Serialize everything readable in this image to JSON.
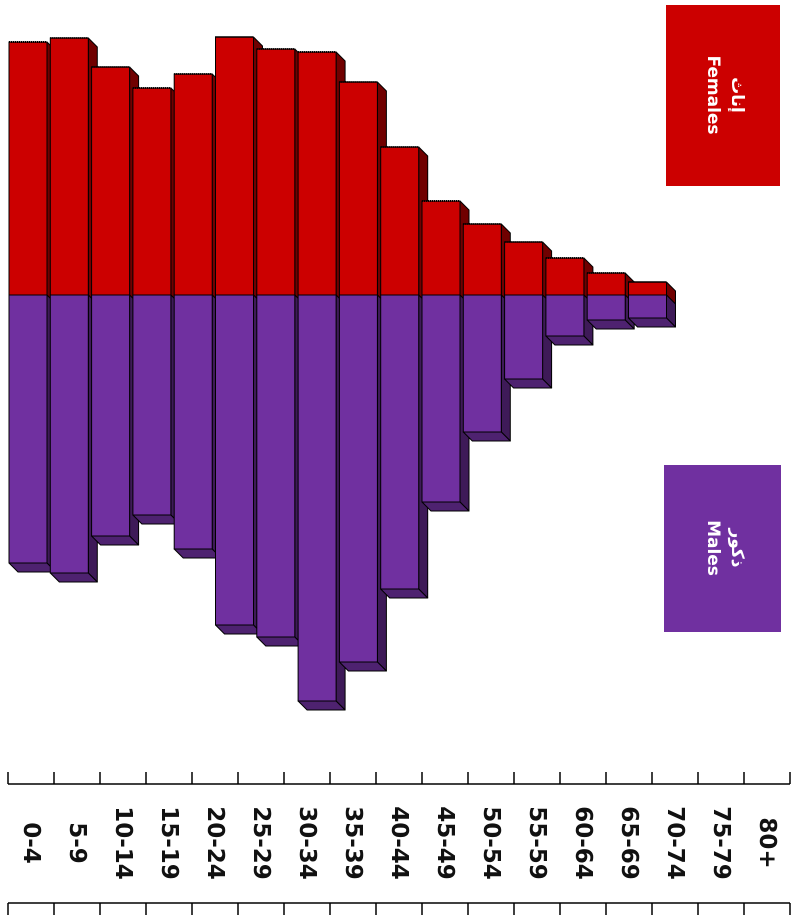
{
  "chart_data": {
    "type": "bar",
    "subtype": "population-pyramid",
    "orientation": "rotated-90-clockwise",
    "categories": [
      "0-4",
      "5-9",
      "10-14",
      "15-19",
      "20-24",
      "25-29",
      "30-34",
      "35-39",
      "40-44",
      "45-49",
      "50-54",
      "55-59",
      "60-64",
      "65-69",
      "70-74",
      "75-79",
      "80+"
    ],
    "series": [
      {
        "name": "إناث Females",
        "label_ar": "إناث",
        "label_en": "Females",
        "color": "#cc0000",
        "values": [
          253,
          257,
          228,
          207,
          221,
          258,
          246,
          243,
          213,
          148,
          94,
          71,
          53,
          37,
          22,
          13,
          0
        ]
      },
      {
        "name": "ذكور Males",
        "label_ar": "ذكور",
        "label_en": "Males",
        "color": "#7030a0",
        "values": [
          268,
          278,
          241,
          220,
          254,
          330,
          342,
          406,
          367,
          294,
          207,
          137,
          84,
          41,
          25,
          23,
          0
        ]
      }
    ],
    "legend": [
      {
        "ar": "إناث",
        "en": "Females",
        "color": "#cc0000",
        "position": "top-right"
      },
      {
        "ar": "ذكور",
        "en": "Males",
        "color": "#7030a0",
        "position": "bottom-right"
      }
    ],
    "grid": false
  }
}
